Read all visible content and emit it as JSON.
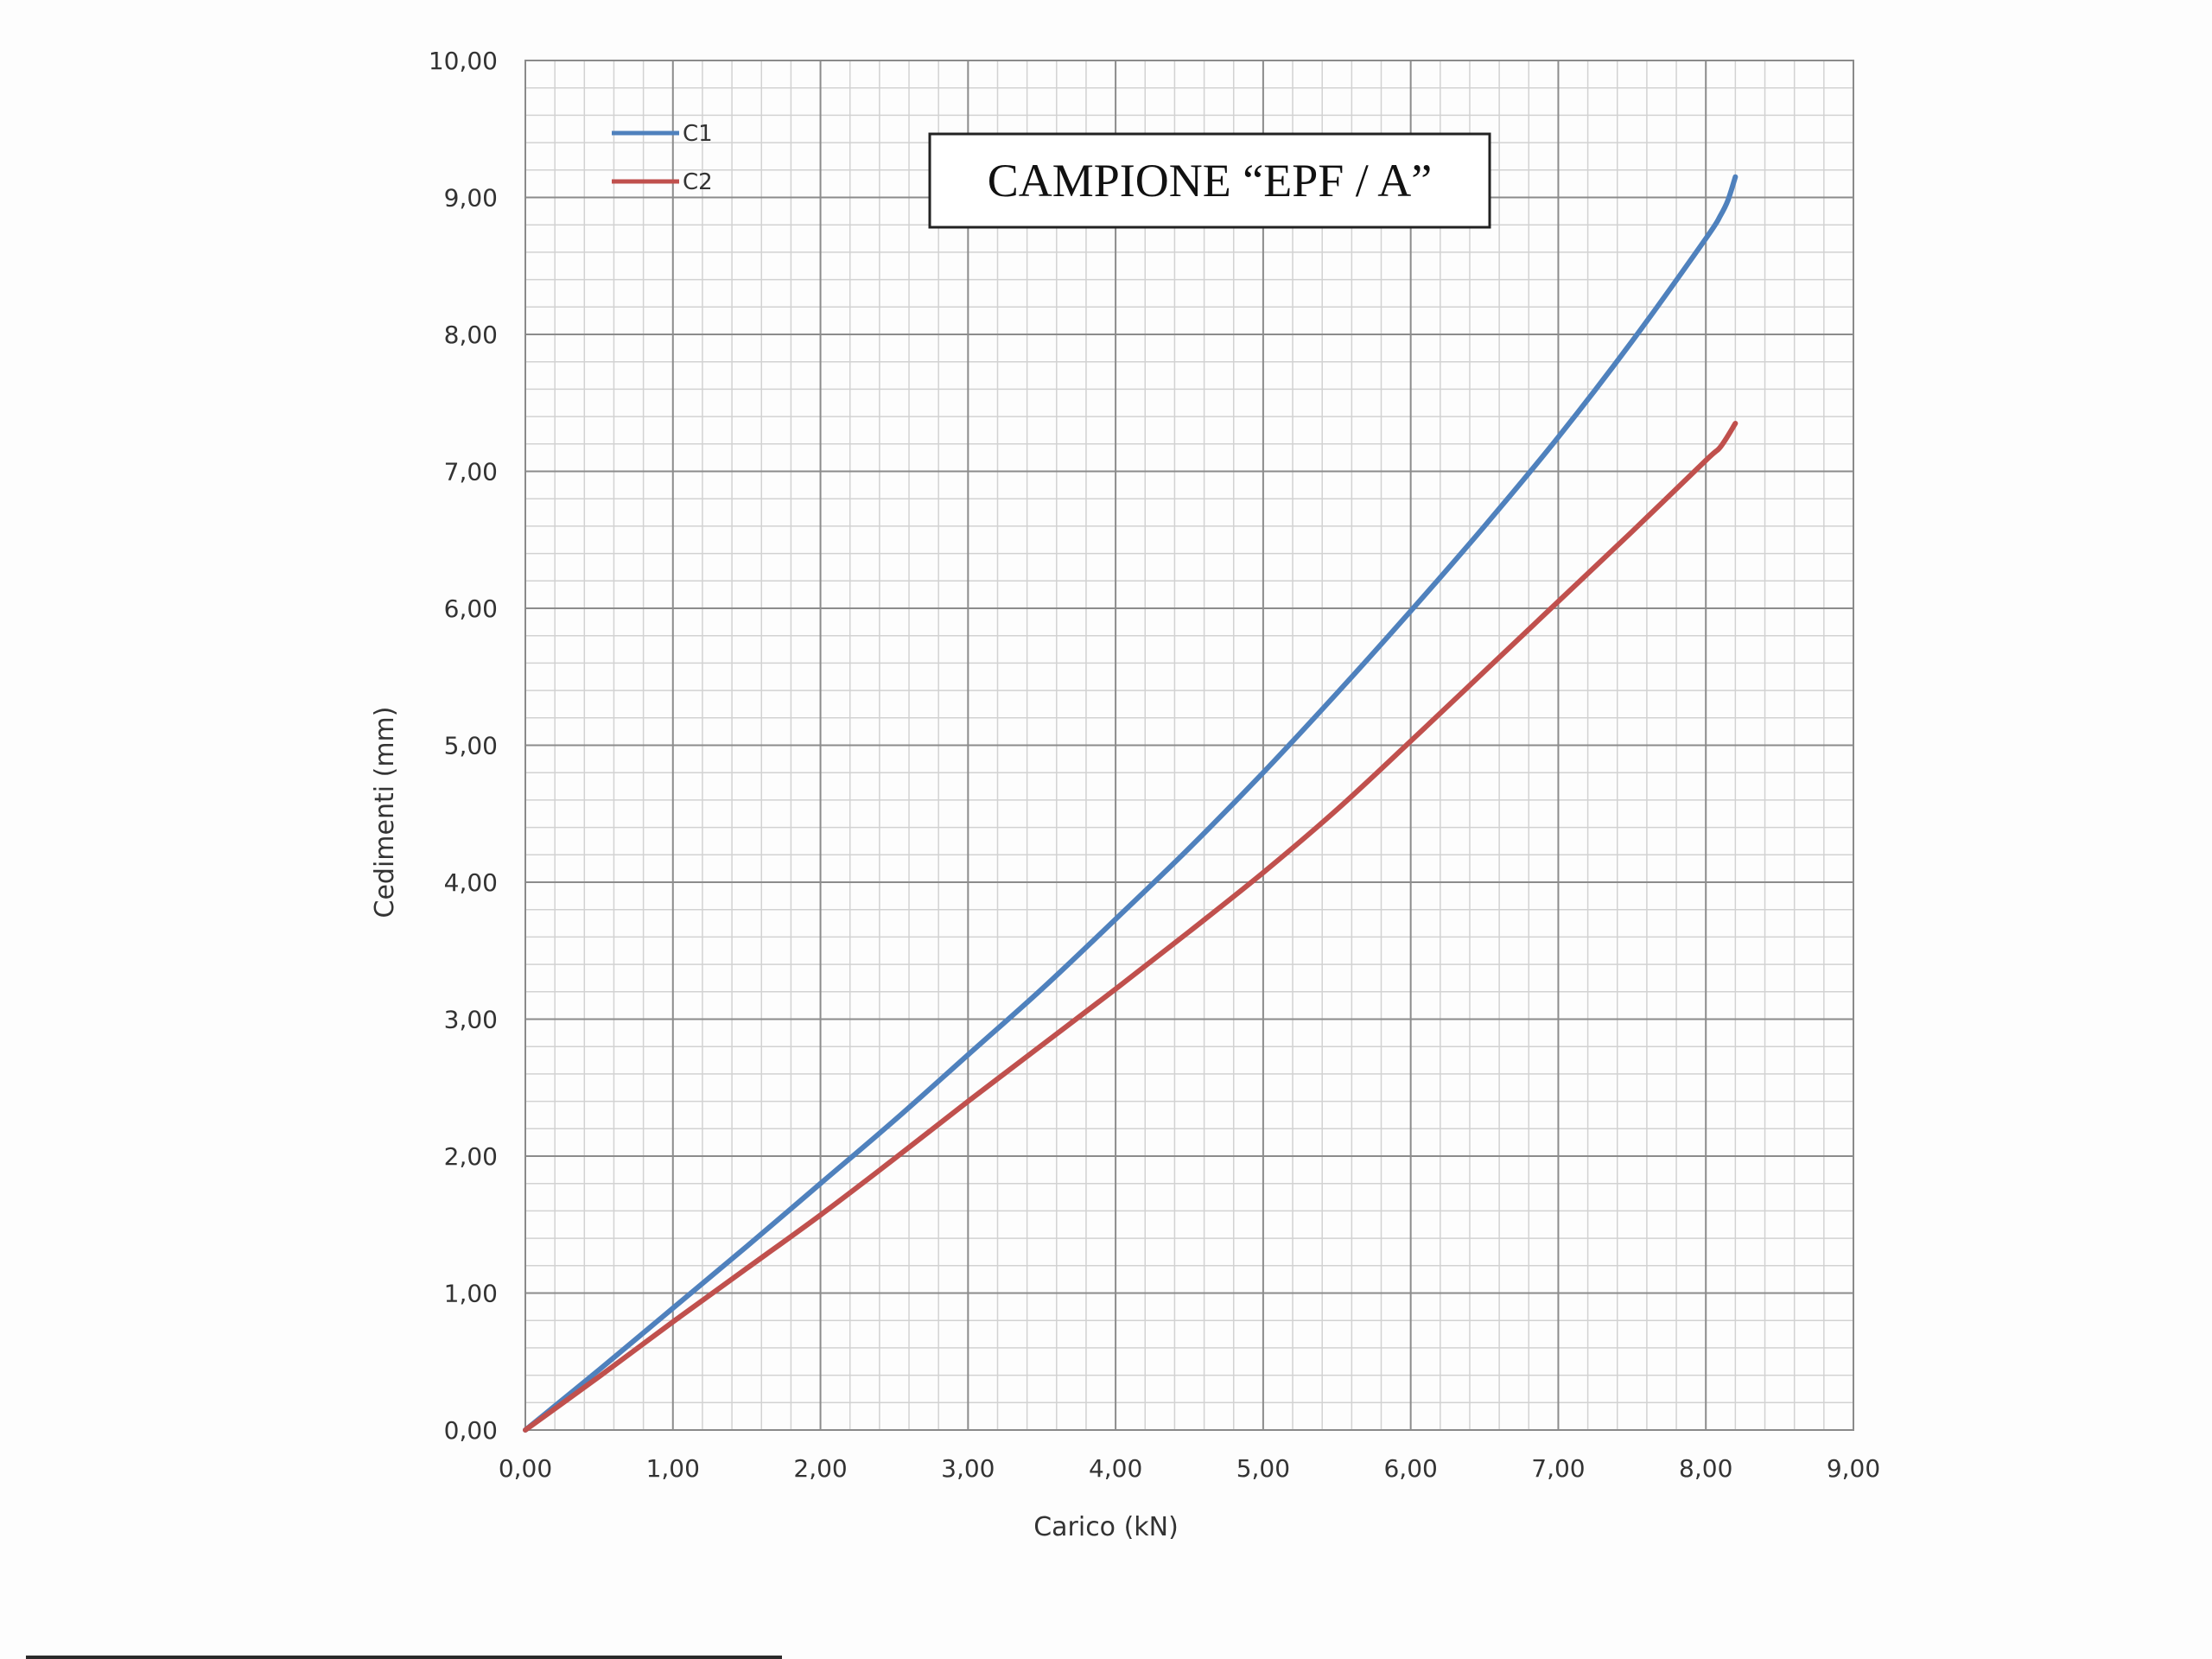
{
  "chart_data": {
    "type": "line",
    "title": "CAMPIONE “EPF / A”",
    "xlabel": "Carico (kN)",
    "ylabel": "Cedimenti (mm)",
    "xlim": [
      0,
      9
    ],
    "ylim": [
      0,
      10
    ],
    "x_ticks": [
      0,
      1,
      2,
      3,
      4,
      5,
      6,
      7,
      8,
      9
    ],
    "y_ticks": [
      0,
      1,
      2,
      3,
      4,
      5,
      6,
      7,
      8,
      9,
      10
    ],
    "x_tick_labels": [
      "0,00",
      "1,00",
      "2,00",
      "3,00",
      "4,00",
      "5,00",
      "6,00",
      "7,00",
      "8,00",
      "9,00"
    ],
    "y_tick_labels": [
      "0,00",
      "1,00",
      "2,00",
      "3,00",
      "4,00",
      "5,00",
      "6,00",
      "7,00",
      "8,00",
      "9,00",
      "10,00"
    ],
    "grid": true,
    "minor_grid_divisions": 5,
    "legend_position": "top-left",
    "series": [
      {
        "name": "C1",
        "color": "#4f81bd",
        "points": [
          [
            0,
            0
          ],
          [
            0.5,
            0.44
          ],
          [
            1,
            0.89
          ],
          [
            1.5,
            1.34
          ],
          [
            2,
            1.8
          ],
          [
            2.5,
            2.26
          ],
          [
            3,
            2.74
          ],
          [
            3.5,
            3.22
          ],
          [
            4,
            3.73
          ],
          [
            4.5,
            4.25
          ],
          [
            5,
            4.8
          ],
          [
            5.5,
            5.38
          ],
          [
            6,
            5.98
          ],
          [
            6.5,
            6.6
          ],
          [
            7,
            7.25
          ],
          [
            7.5,
            7.95
          ],
          [
            8,
            8.7
          ],
          [
            8.1,
            8.87
          ],
          [
            8.15,
            8.98
          ],
          [
            8.2,
            9.15
          ]
        ]
      },
      {
        "name": "C2",
        "color": "#c0504d",
        "points": [
          [
            0,
            0
          ],
          [
            0.5,
            0.39
          ],
          [
            1,
            0.79
          ],
          [
            1.5,
            1.18
          ],
          [
            2,
            1.57
          ],
          [
            2.5,
            1.98
          ],
          [
            3,
            2.4
          ],
          [
            3.5,
            2.81
          ],
          [
            4,
            3.22
          ],
          [
            4.5,
            3.64
          ],
          [
            5,
            4.07
          ],
          [
            5.5,
            4.53
          ],
          [
            6,
            5.03
          ],
          [
            6.5,
            5.54
          ],
          [
            7,
            6.05
          ],
          [
            7.5,
            6.56
          ],
          [
            8,
            7.08
          ],
          [
            8.1,
            7.18
          ],
          [
            8.2,
            7.35
          ]
        ]
      }
    ]
  }
}
